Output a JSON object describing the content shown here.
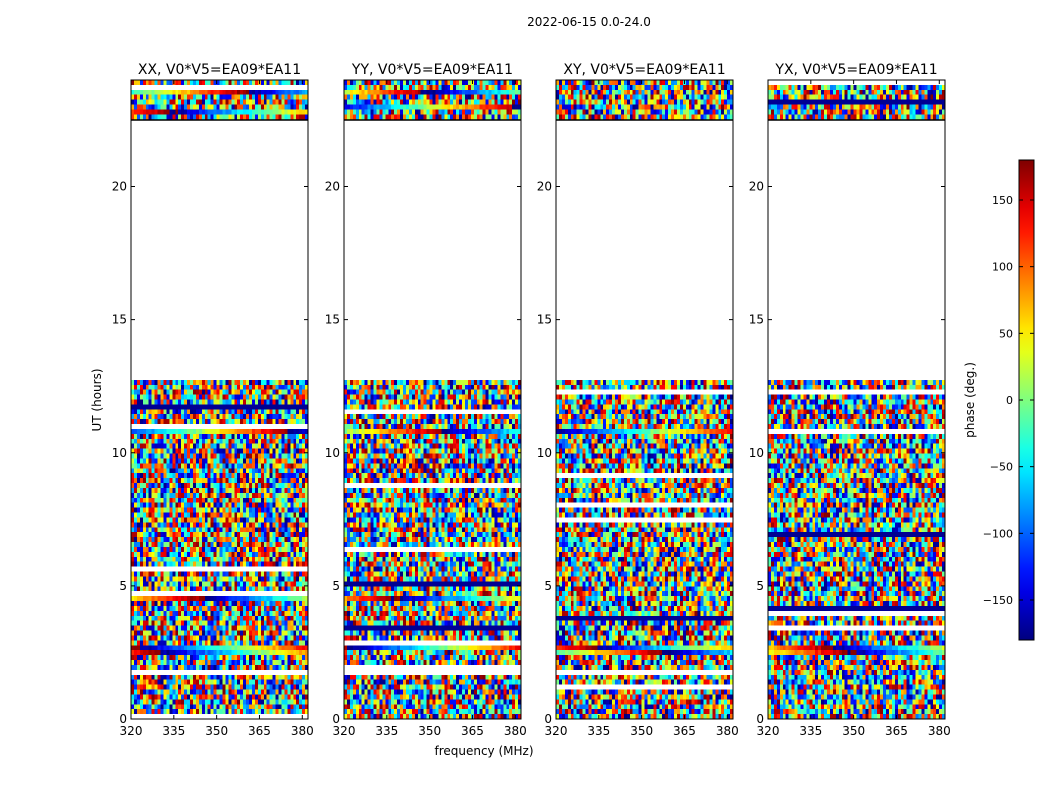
{
  "figure_title": "2022-06-15 0.0-24.0",
  "colors": {
    "axis": "#000000",
    "background": "#ffffff",
    "colormap": [
      "#00007f",
      "#0000ff",
      "#007fff",
      "#00ffff",
      "#7fff7f",
      "#ffff00",
      "#ff7f00",
      "#ff0000",
      "#7f0000"
    ]
  },
  "chart_data": {
    "type": "heatmap",
    "subplot_titles": [
      "XX, V0*V5=EA09*EA11",
      "YY, V0*V5=EA09*EA11",
      "XY, V0*V5=EA09*EA11",
      "YX, V0*V5=EA09*EA11"
    ],
    "xlabel": "frequency (MHz)",
    "ylabel": "UT (hours)",
    "xlim": [
      320,
      382
    ],
    "ylim": [
      0,
      24
    ],
    "x_ticks": [
      320,
      335,
      350,
      365,
      380
    ],
    "y_ticks": [
      0,
      5,
      10,
      15,
      20
    ],
    "colorbar": {
      "label": "phase (deg.)",
      "range": [
        -180,
        180
      ],
      "ticks": [
        -150,
        -100,
        -50,
        0,
        50,
        100,
        150
      ],
      "tick_labels": [
        "−150",
        "−100",
        "−50",
        "0",
        "50",
        "100",
        "150"
      ]
    },
    "data_time_ranges_hours": [
      [
        0,
        12.8
      ],
      [
        22.5,
        24
      ]
    ],
    "flagged_gap_hours": [
      12.8,
      22.5
    ],
    "coherent_phase_bands_hours": {
      "XX": [
        0.1,
        2.6,
        4.6,
        10.8,
        22.8,
        23.5
      ],
      "YY": [
        2.7,
        4.5,
        10.8,
        23.0,
        23.6
      ],
      "XY": [
        2.6,
        10.8
      ],
      "YX": [
        2.6,
        10.8
      ]
    }
  }
}
